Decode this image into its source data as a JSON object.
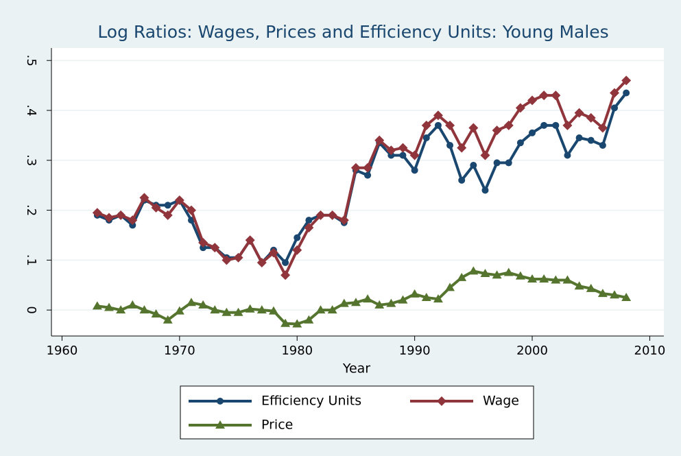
{
  "chart_data": {
    "type": "line",
    "title": "Log Ratios: Wages, Prices and Efficiency Units: Young Males",
    "x_label": "Year",
    "x": [
      1963,
      1964,
      1965,
      1966,
      1967,
      1968,
      1969,
      1970,
      1971,
      1972,
      1973,
      1974,
      1975,
      1976,
      1977,
      1978,
      1979,
      1980,
      1981,
      1982,
      1983,
      1984,
      1985,
      1986,
      1987,
      1988,
      1989,
      1990,
      1991,
      1992,
      1993,
      1994,
      1995,
      1996,
      1997,
      1998,
      1999,
      2000,
      2001,
      2002,
      2003,
      2004,
      2005,
      2006,
      2007,
      2008
    ],
    "series": [
      {
        "name": "Efficiency Units",
        "color": "#1a476f",
        "marker": "circle",
        "values": [
          0.19,
          0.18,
          0.19,
          0.17,
          0.22,
          0.21,
          0.21,
          0.22,
          0.18,
          0.125,
          0.125,
          0.105,
          0.105,
          0.14,
          0.095,
          0.12,
          0.095,
          0.145,
          0.18,
          0.19,
          0.19,
          0.175,
          0.28,
          0.27,
          0.335,
          0.31,
          0.31,
          0.28,
          0.345,
          0.37,
          0.33,
          0.26,
          0.29,
          0.24,
          0.295,
          0.295,
          0.335,
          0.355,
          0.37,
          0.37,
          0.31,
          0.345,
          0.34,
          0.33,
          0.405,
          0.435
        ]
      },
      {
        "name": "Wage",
        "color": "#90353b",
        "marker": "diamond",
        "values": [
          0.195,
          0.185,
          0.19,
          0.18,
          0.225,
          0.205,
          0.19,
          0.22,
          0.2,
          0.135,
          0.125,
          0.1,
          0.105,
          0.14,
          0.095,
          0.115,
          0.07,
          0.12,
          0.165,
          0.19,
          0.19,
          0.18,
          0.285,
          0.285,
          0.34,
          0.32,
          0.325,
          0.31,
          0.37,
          0.39,
          0.37,
          0.325,
          0.365,
          0.31,
          0.36,
          0.37,
          0.405,
          0.42,
          0.43,
          0.43,
          0.37,
          0.395,
          0.385,
          0.365,
          0.435,
          0.46
        ]
      },
      {
        "name": "Price",
        "color": "#55752f",
        "marker": "triangle",
        "values": [
          0.008,
          0.005,
          0,
          0.01,
          0,
          -0.008,
          -0.02,
          -0.002,
          0.015,
          0.01,
          0,
          -0.005,
          -0.005,
          0.002,
          0,
          -0.002,
          -0.027,
          -0.028,
          -0.02,
          0,
          0,
          0.013,
          0.015,
          0.022,
          0.01,
          0.013,
          0.02,
          0.032,
          0.025,
          0.022,
          0.045,
          0.065,
          0.078,
          0.073,
          0.07,
          0.075,
          0.068,
          0.062,
          0.062,
          0.06,
          0.06,
          0.048,
          0.043,
          0.033,
          0.03,
          0.025
        ]
      }
    ],
    "xlim": [
      1959.1,
      2011.2
    ],
    "xticks": [
      1960,
      1970,
      1980,
      1990,
      2000,
      2010
    ],
    "ylim": [
      -0.052,
      0.525
    ],
    "yticks": [
      0,
      {
        "value": 0.1,
        "label": ".1"
      },
      {
        "value": 0.2,
        "label": ".2"
      },
      {
        "value": 0.3,
        "label": ".3"
      },
      {
        "value": 0.4,
        "label": ".4"
      },
      {
        "value": 0.5,
        "label": ".5"
      }
    ],
    "grid": true
  }
}
